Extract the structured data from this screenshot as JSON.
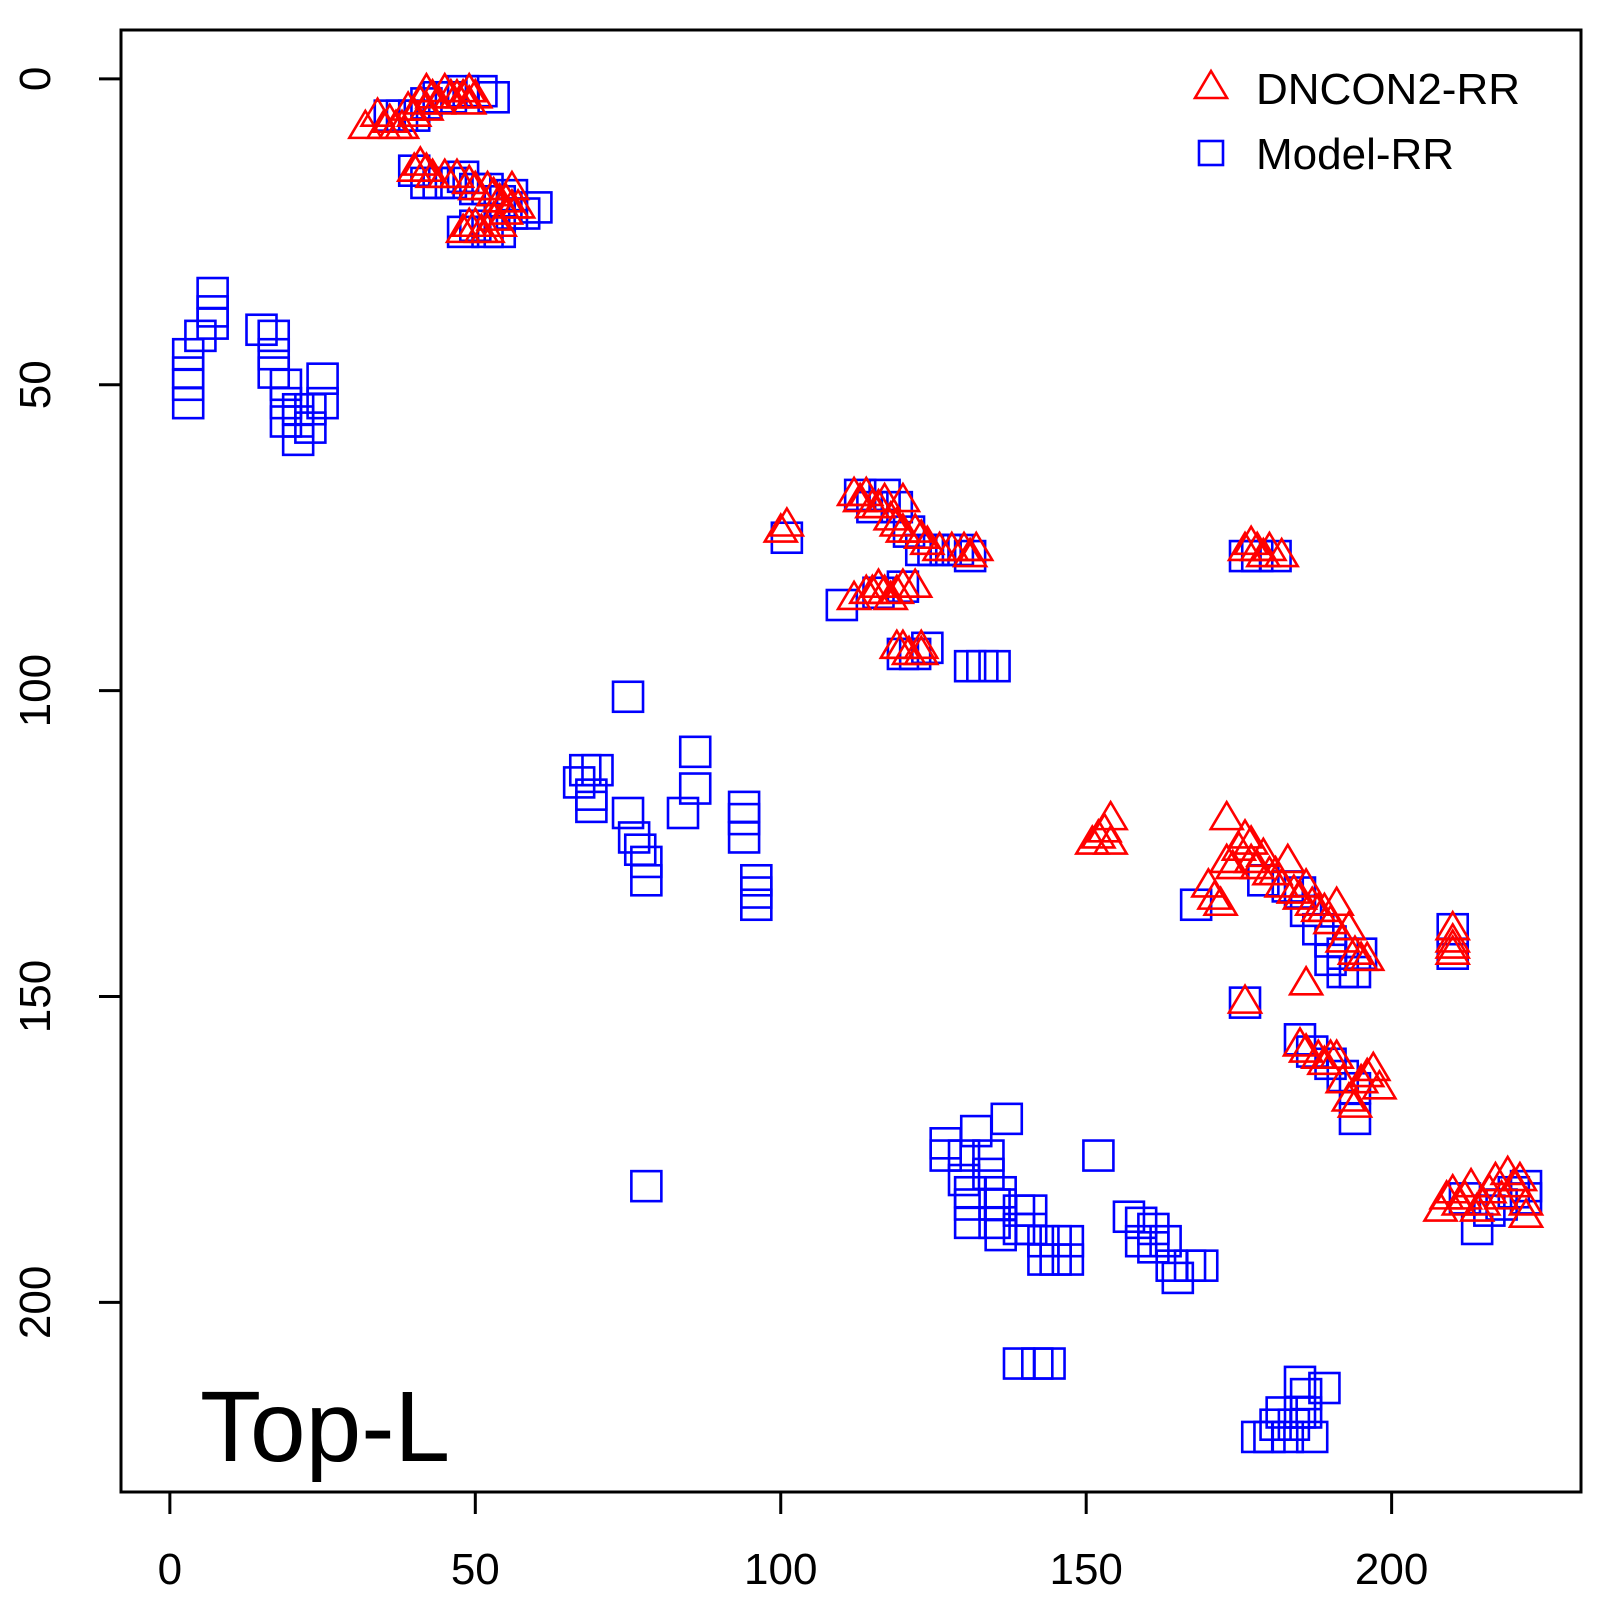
{
  "chart_data": {
    "type": "scatter",
    "panel_label": "Top-L",
    "xlim": [
      -8,
      231
    ],
    "ylim": [
      231,
      -8
    ],
    "y_reversed": true,
    "x_ticks": [
      0,
      50,
      100,
      150,
      200
    ],
    "x_tick_labels": [
      "0",
      "50",
      "100",
      "150",
      "200"
    ],
    "y_ticks": [
      0,
      50,
      100,
      150,
      200
    ],
    "y_tick_labels": [
      "0",
      "50",
      "100",
      "150",
      "200"
    ],
    "legend_position": "top-right",
    "series": [
      {
        "name": "DNCON2-RR",
        "marker": "triangle",
        "color": "#ff0000",
        "points": [
          [
            32,
            8
          ],
          [
            34,
            6
          ],
          [
            35,
            8
          ],
          [
            36,
            7
          ],
          [
            37,
            8
          ],
          [
            38,
            8
          ],
          [
            39,
            5
          ],
          [
            40,
            6
          ],
          [
            41,
            4
          ],
          [
            42,
            2
          ],
          [
            42,
            5
          ],
          [
            43,
            3
          ],
          [
            44,
            4
          ],
          [
            45,
            2
          ],
          [
            46,
            3
          ],
          [
            47,
            3
          ],
          [
            48,
            3
          ],
          [
            49,
            2
          ],
          [
            49,
            4
          ],
          [
            50,
            3
          ],
          [
            40,
            15
          ],
          [
            41,
            14
          ],
          [
            42,
            15
          ],
          [
            43,
            16
          ],
          [
            45,
            16
          ],
          [
            47,
            16
          ],
          [
            49,
            17
          ],
          [
            50,
            18
          ],
          [
            52,
            18
          ],
          [
            53,
            19
          ],
          [
            54,
            20
          ],
          [
            55,
            20
          ],
          [
            56,
            18
          ],
          [
            57,
            21
          ],
          [
            48,
            25
          ],
          [
            49,
            24
          ],
          [
            50,
            24
          ],
          [
            51,
            25
          ],
          [
            52,
            25
          ],
          [
            53,
            23
          ],
          [
            54,
            24
          ],
          [
            55,
            22
          ],
          [
            56,
            21
          ],
          [
            100,
            74
          ],
          [
            101,
            73
          ],
          [
            112,
            68
          ],
          [
            113,
            69
          ],
          [
            114,
            68
          ],
          [
            115,
            70
          ],
          [
            116,
            70
          ],
          [
            117,
            69
          ],
          [
            118,
            72
          ],
          [
            119,
            73
          ],
          [
            120,
            69
          ],
          [
            120,
            74
          ],
          [
            122,
            74
          ],
          [
            123,
            75
          ],
          [
            124,
            76
          ],
          [
            126,
            77
          ],
          [
            128,
            77
          ],
          [
            130,
            77
          ],
          [
            131,
            78
          ],
          [
            132,
            77
          ],
          [
            112,
            85
          ],
          [
            114,
            84
          ],
          [
            115,
            84
          ],
          [
            116,
            83
          ],
          [
            117,
            84
          ],
          [
            118,
            85
          ],
          [
            119,
            84
          ],
          [
            120,
            83
          ],
          [
            122,
            83
          ],
          [
            119,
            93
          ],
          [
            120,
            93
          ],
          [
            121,
            94
          ],
          [
            123,
            93
          ],
          [
            123,
            94
          ],
          [
            176,
            77
          ],
          [
            177,
            76
          ],
          [
            178,
            77
          ],
          [
            179,
            78
          ],
          [
            180,
            77
          ],
          [
            182,
            78
          ],
          [
            151,
            125
          ],
          [
            152,
            124
          ],
          [
            153,
            123
          ],
          [
            154,
            121
          ],
          [
            154,
            125
          ],
          [
            170,
            132
          ],
          [
            171,
            134
          ],
          [
            172,
            135
          ],
          [
            173,
            121
          ],
          [
            173,
            128
          ],
          [
            174,
            129
          ],
          [
            175,
            126
          ],
          [
            176,
            124
          ],
          [
            177,
            125
          ],
          [
            177,
            128
          ],
          [
            178,
            129
          ],
          [
            179,
            127
          ],
          [
            180,
            130
          ],
          [
            181,
            130
          ],
          [
            182,
            132
          ],
          [
            183,
            128
          ],
          [
            184,
            133
          ],
          [
            185,
            134
          ],
          [
            186,
            132
          ],
          [
            186,
            148
          ],
          [
            187,
            135
          ],
          [
            188,
            136
          ],
          [
            189,
            136
          ],
          [
            190,
            138
          ],
          [
            191,
            135
          ],
          [
            192,
            141
          ],
          [
            193,
            139
          ],
          [
            194,
            143
          ],
          [
            195,
            144
          ],
          [
            196,
            144
          ],
          [
            176,
            151
          ],
          [
            185,
            158
          ],
          [
            186,
            159
          ],
          [
            188,
            160
          ],
          [
            189,
            161
          ],
          [
            190,
            160
          ],
          [
            191,
            160
          ],
          [
            192,
            164
          ],
          [
            193,
            167
          ],
          [
            194,
            168
          ],
          [
            195,
            164
          ],
          [
            196,
            163
          ],
          [
            197,
            162
          ],
          [
            198,
            165
          ],
          [
            210,
            139
          ],
          [
            210,
            141
          ],
          [
            210,
            142
          ],
          [
            210,
            143
          ],
          [
            208,
            185
          ],
          [
            209,
            183
          ],
          [
            210,
            182
          ],
          [
            211,
            184
          ],
          [
            212,
            183
          ],
          [
            213,
            181
          ],
          [
            214,
            185
          ],
          [
            215,
            184
          ],
          [
            216,
            182
          ],
          [
            217,
            180
          ],
          [
            218,
            183
          ],
          [
            219,
            179
          ],
          [
            220,
            181
          ],
          [
            221,
            180
          ],
          [
            222,
            184
          ],
          [
            222,
            186
          ]
        ]
      },
      {
        "name": "Model-RR",
        "marker": "square",
        "color": "#0000ff",
        "points": [
          [
            3,
            45
          ],
          [
            3,
            48
          ],
          [
            3,
            50
          ],
          [
            3,
            53
          ],
          [
            5,
            42
          ],
          [
            7,
            35
          ],
          [
            7,
            38
          ],
          [
            7,
            40
          ],
          [
            15,
            41
          ],
          [
            17,
            42
          ],
          [
            17,
            45
          ],
          [
            17,
            48
          ],
          [
            19,
            50
          ],
          [
            19,
            53
          ],
          [
            19,
            56
          ],
          [
            21,
            54
          ],
          [
            21,
            56
          ],
          [
            21,
            59
          ],
          [
            23,
            54
          ],
          [
            23,
            57
          ],
          [
            25,
            49
          ],
          [
            25,
            53
          ],
          [
            36,
            6
          ],
          [
            38,
            6
          ],
          [
            40,
            6
          ],
          [
            42,
            4
          ],
          [
            44,
            3
          ],
          [
            46,
            3
          ],
          [
            48,
            2
          ],
          [
            51,
            2
          ],
          [
            53,
            3
          ],
          [
            40,
            15
          ],
          [
            42,
            17
          ],
          [
            44,
            17
          ],
          [
            46,
            17
          ],
          [
            48,
            16
          ],
          [
            50,
            18
          ],
          [
            52,
            18
          ],
          [
            54,
            20
          ],
          [
            56,
            19
          ],
          [
            58,
            22
          ],
          [
            60,
            21
          ],
          [
            48,
            25
          ],
          [
            50,
            24
          ],
          [
            52,
            25
          ],
          [
            54,
            25
          ],
          [
            56,
            22
          ],
          [
            101,
            75
          ],
          [
            110,
            86
          ],
          [
            113,
            68
          ],
          [
            115,
            70
          ],
          [
            117,
            68
          ],
          [
            119,
            70
          ],
          [
            121,
            74
          ],
          [
            123,
            77
          ],
          [
            125,
            77
          ],
          [
            127,
            77
          ],
          [
            129,
            77
          ],
          [
            131,
            78
          ],
          [
            116,
            84
          ],
          [
            120,
            83
          ],
          [
            120,
            94
          ],
          [
            122,
            94
          ],
          [
            124,
            93
          ],
          [
            131,
            96
          ],
          [
            133,
            96
          ],
          [
            135,
            96
          ],
          [
            67,
            115
          ],
          [
            68,
            113
          ],
          [
            69,
            117
          ],
          [
            69,
            119
          ],
          [
            70,
            113
          ],
          [
            75,
            101
          ],
          [
            75,
            120
          ],
          [
            76,
            124
          ],
          [
            77,
            126
          ],
          [
            78,
            128
          ],
          [
            78,
            131
          ],
          [
            84,
            120
          ],
          [
            86,
            110
          ],
          [
            86,
            116
          ],
          [
            94,
            119
          ],
          [
            94,
            121
          ],
          [
            94,
            124
          ],
          [
            96,
            131
          ],
          [
            96,
            133
          ],
          [
            96,
            135
          ],
          [
            78,
            181
          ],
          [
            127,
            174
          ],
          [
            127,
            176
          ],
          [
            130,
            176
          ],
          [
            130,
            180
          ],
          [
            131,
            182
          ],
          [
            131,
            184
          ],
          [
            131,
            187
          ],
          [
            132,
            172
          ],
          [
            134,
            176
          ],
          [
            134,
            179
          ],
          [
            135,
            184
          ],
          [
            135,
            187
          ],
          [
            136,
            182
          ],
          [
            136,
            184
          ],
          [
            136,
            189
          ],
          [
            137,
            170
          ],
          [
            139,
            185
          ],
          [
            139,
            188
          ],
          [
            141,
            185
          ],
          [
            141,
            188
          ],
          [
            143,
            190
          ],
          [
            143,
            193
          ],
          [
            145,
            190
          ],
          [
            145,
            193
          ],
          [
            147,
            190
          ],
          [
            147,
            193
          ],
          [
            152,
            176
          ],
          [
            157,
            186
          ],
          [
            159,
            187
          ],
          [
            159,
            190
          ],
          [
            161,
            188
          ],
          [
            161,
            191
          ],
          [
            163,
            190
          ],
          [
            164,
            194
          ],
          [
            165,
            196
          ],
          [
            167,
            194
          ],
          [
            169,
            194
          ],
          [
            139,
            210
          ],
          [
            142,
            210
          ],
          [
            144,
            210
          ],
          [
            176,
            78
          ],
          [
            178,
            78
          ],
          [
            181,
            78
          ],
          [
            176,
            151
          ],
          [
            168,
            135
          ],
          [
            179,
            131
          ],
          [
            183,
            132
          ],
          [
            185,
            133
          ],
          [
            186,
            136
          ],
          [
            188,
            139
          ],
          [
            190,
            141
          ],
          [
            190,
            144
          ],
          [
            192,
            143
          ],
          [
            192,
            146
          ],
          [
            194,
            146
          ],
          [
            195,
            143
          ],
          [
            185,
            157
          ],
          [
            187,
            159
          ],
          [
            190,
            161
          ],
          [
            192,
            163
          ],
          [
            194,
            165
          ],
          [
            194,
            170
          ],
          [
            210,
            139
          ],
          [
            210,
            143
          ],
          [
            212,
            183
          ],
          [
            214,
            188
          ],
          [
            216,
            185
          ],
          [
            218,
            184
          ],
          [
            220,
            182
          ],
          [
            222,
            181
          ],
          [
            222,
            183
          ],
          [
            178,
            222
          ],
          [
            180,
            222
          ],
          [
            181,
            220
          ],
          [
            182,
            218
          ],
          [
            183,
            222
          ],
          [
            184,
            220
          ],
          [
            185,
            218
          ],
          [
            185,
            213
          ],
          [
            186,
            215
          ],
          [
            186,
            218
          ],
          [
            187,
            222
          ],
          [
            189,
            214
          ]
        ]
      }
    ]
  }
}
